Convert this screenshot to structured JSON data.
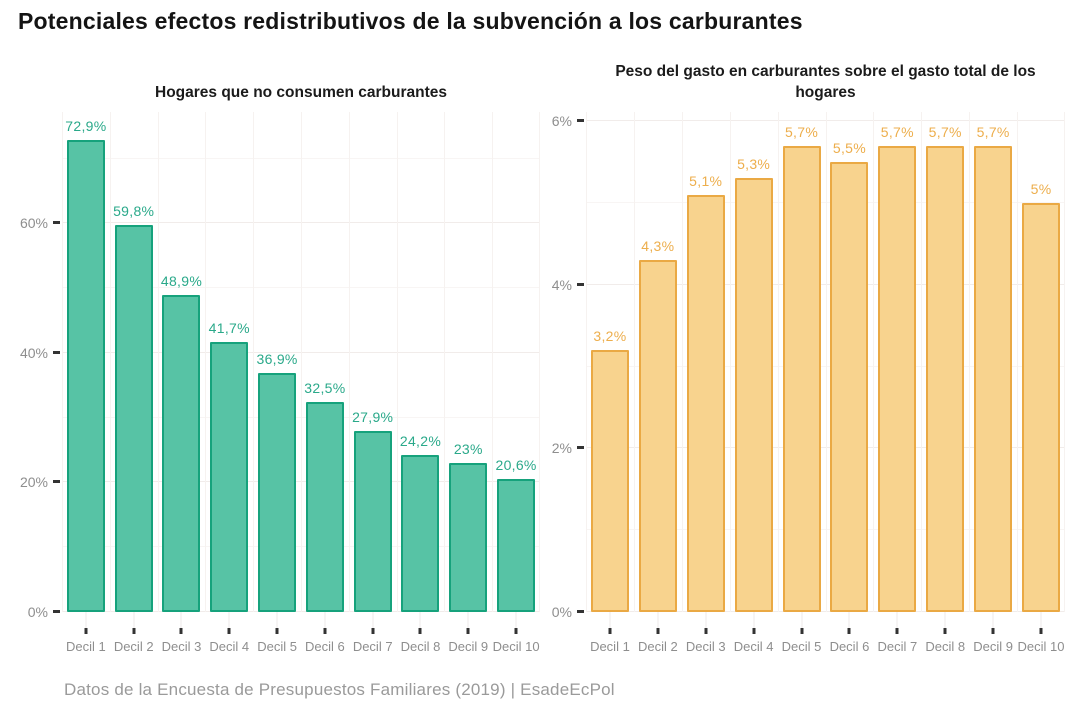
{
  "page": {
    "title": "Potenciales efectos redistributivos de la subvención a los carburantes",
    "source_note": "Datos de la Encuesta de Presupuestos Familiares (2019) | EsadeEcPol"
  },
  "colors": {
    "teal_fill": "#57c3a5",
    "teal_stroke": "#16a27c",
    "teal_label": "#2aa98a",
    "yellow_fill": "#f8d38e",
    "yellow_stroke": "#eaa944",
    "yellow_label": "#edae4c",
    "axis_text": "#8e8e8e",
    "tick_mark": "#333333",
    "grid_major": "#f1ecea",
    "grid_minor": "#f8f5f4",
    "title_text": "#141414",
    "footer_text": "#9a9a9a"
  },
  "chart_data": [
    {
      "type": "bar",
      "title": "Hogares que no consumen carburantes",
      "categories": [
        "Decil 1",
        "Decil 2",
        "Decil 3",
        "Decil 4",
        "Decil 5",
        "Decil 6",
        "Decil 7",
        "Decil 8",
        "Decil 9",
        "Decil 10"
      ],
      "values": [
        72.9,
        59.8,
        48.9,
        41.7,
        36.9,
        32.5,
        27.9,
        24.2,
        23,
        20.6
      ],
      "value_labels": [
        "72,9%",
        "59,8%",
        "48,9%",
        "41,7%",
        "36,9%",
        "32,5%",
        "27,9%",
        "24,2%",
        "23%",
        "20,6%"
      ],
      "xlabel": "",
      "ylabel": "",
      "ylim": [
        0,
        77.2
      ],
      "y_major_ticks": [
        {
          "value": 0,
          "label": "0%"
        },
        {
          "value": 20,
          "label": "20%"
        },
        {
          "value": 40,
          "label": "40%"
        },
        {
          "value": 60,
          "label": "60%"
        }
      ],
      "y_minor_ticks": [
        10,
        30,
        50,
        70
      ],
      "grid": "on",
      "legend": "none",
      "bar_fill": "#57c3a5",
      "bar_stroke": "#16a27c",
      "label_color": "#2aa98a"
    },
    {
      "type": "bar",
      "title": "Peso del gasto en carburantes sobre el gasto total de los hogares",
      "categories": [
        "Decil 1",
        "Decil 2",
        "Decil 3",
        "Decil 4",
        "Decil 5",
        "Decil 6",
        "Decil 7",
        "Decil 8",
        "Decil 9",
        "Decil 10"
      ],
      "values": [
        3.2,
        4.3,
        5.1,
        5.3,
        5.7,
        5.5,
        5.7,
        5.7,
        5.7,
        5
      ],
      "value_labels": [
        "3,2%",
        "4,3%",
        "5,1%",
        "5,3%",
        "5,7%",
        "5,5%",
        "5,7%",
        "5,7%",
        "5,7%",
        "5%"
      ],
      "xlabel": "",
      "ylabel": "",
      "ylim": [
        0,
        6.11
      ],
      "y_major_ticks": [
        {
          "value": 0,
          "label": "0%"
        },
        {
          "value": 2,
          "label": "2%"
        },
        {
          "value": 4,
          "label": "4%"
        },
        {
          "value": 6,
          "label": "6%"
        }
      ],
      "y_minor_ticks": [
        1,
        3,
        5
      ],
      "grid": "on",
      "legend": "none",
      "bar_fill": "#f8d38e",
      "bar_stroke": "#eaa944",
      "label_color": "#edae4c"
    }
  ]
}
